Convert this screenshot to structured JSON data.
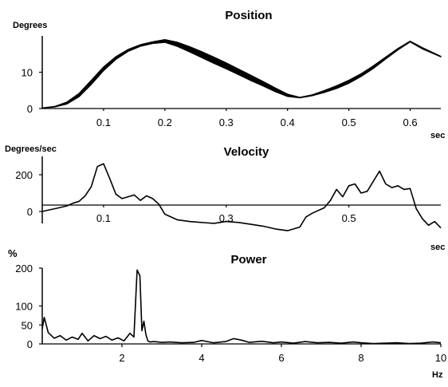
{
  "chart_data": [
    {
      "type": "line",
      "title": "Position",
      "ylabel": "Degrees",
      "xlabel": "sec",
      "xlim": [
        0,
        0.65
      ],
      "ylim": [
        0,
        20
      ],
      "xticks": [
        0.1,
        0.2,
        0.3,
        0.4,
        0.5,
        0.6
      ],
      "xtick_labels": [
        "0.1",
        "0.2",
        "0.3",
        "0.4",
        "0.5",
        "0.6"
      ],
      "yticks": [
        0,
        10
      ],
      "ytick_labels": [
        "0",
        "10"
      ],
      "series": [
        {
          "x": [
            0.0,
            0.02,
            0.04,
            0.06,
            0.08,
            0.1,
            0.12,
            0.14,
            0.16,
            0.18,
            0.2,
            0.22,
            0.24,
            0.26,
            0.28,
            0.3,
            0.32,
            0.34,
            0.36,
            0.38,
            0.4,
            0.42,
            0.44,
            0.46,
            0.48,
            0.5,
            0.52,
            0.54,
            0.56,
            0.58,
            0.6,
            0.62,
            0.65
          ],
          "upper": [
            0.2,
            0.6,
            1.8,
            4.2,
            7.8,
            11.5,
            14.3,
            16.3,
            17.6,
            18.4,
            19.0,
            18.3,
            17.1,
            15.7,
            14.2,
            12.6,
            10.9,
            9.2,
            7.5,
            5.7,
            4.0,
            3.1,
            3.8,
            5.0,
            6.3,
            7.8,
            9.6,
            11.8,
            14.2,
            16.6,
            18.6,
            16.8,
            14.4
          ],
          "lower": [
            0.1,
            0.4,
            1.2,
            3.2,
            6.6,
            10.4,
            13.5,
            15.7,
            17.1,
            17.9,
            18.2,
            17.1,
            15.6,
            14.0,
            12.4,
            10.9,
            9.3,
            7.7,
            6.2,
            4.6,
            3.3,
            2.9,
            3.5,
            4.4,
            5.5,
            6.9,
            8.8,
            11.0,
            13.6,
            16.1,
            18.3,
            16.4,
            14.2
          ]
        }
      ]
    },
    {
      "type": "line",
      "title": "Velocity",
      "ylabel": "Degrees/sec",
      "xlabel": "sec",
      "xlim": [
        0,
        0.65
      ],
      "ylim": [
        -100,
        300
      ],
      "xticks": [
        0.1,
        0.3,
        0.5
      ],
      "xtick_labels": [
        "0.1",
        "0.3",
        "0.5"
      ],
      "yticks": [
        0,
        200
      ],
      "ytick_labels": [
        "0",
        "200"
      ],
      "series": [
        {
          "x": [
            0.0,
            0.02,
            0.04,
            0.05,
            0.06,
            0.07,
            0.08,
            0.09,
            0.1,
            0.11,
            0.12,
            0.13,
            0.14,
            0.15,
            0.16,
            0.17,
            0.18,
            0.19,
            0.2,
            0.22,
            0.24,
            0.26,
            0.28,
            0.3,
            0.32,
            0.34,
            0.36,
            0.38,
            0.4,
            0.42,
            0.43,
            0.44,
            0.46,
            0.47,
            0.48,
            0.49,
            0.5,
            0.51,
            0.52,
            0.53,
            0.54,
            0.55,
            0.56,
            0.57,
            0.58,
            0.59,
            0.6,
            0.61,
            0.62,
            0.63,
            0.64,
            0.65
          ],
          "y": [
            0,
            15,
            30,
            45,
            55,
            85,
            135,
            245,
            260,
            180,
            95,
            70,
            80,
            90,
            60,
            85,
            70,
            40,
            -15,
            -45,
            -55,
            -60,
            -65,
            -55,
            -60,
            -70,
            -80,
            -95,
            -105,
            -85,
            -30,
            -10,
            20,
            60,
            120,
            80,
            140,
            150,
            100,
            110,
            165,
            220,
            150,
            130,
            140,
            120,
            125,
            15,
            -40,
            -75,
            -55,
            -90
          ]
        }
      ]
    },
    {
      "type": "line",
      "title": "Power",
      "ylabel": "%",
      "xlabel": "Hz",
      "xlim": [
        0,
        10
      ],
      "ylim": [
        0,
        200
      ],
      "xticks": [
        2,
        4,
        6,
        8,
        10
      ],
      "xtick_labels": [
        "2",
        "4",
        "6",
        "8",
        "10"
      ],
      "yticks": [
        0,
        50,
        100,
        200
      ],
      "ytick_labels": [
        "0",
        "50",
        "100",
        "200"
      ],
      "series": [
        {
          "x": [
            0.0,
            0.05,
            0.15,
            0.3,
            0.45,
            0.6,
            0.75,
            0.9,
            1.0,
            1.15,
            1.3,
            1.45,
            1.6,
            1.75,
            1.9,
            2.05,
            2.2,
            2.3,
            2.38,
            2.45,
            2.5,
            2.55,
            2.6,
            2.65,
            2.7,
            2.8,
            3.0,
            3.2,
            3.5,
            3.8,
            4.0,
            4.3,
            4.6,
            4.8,
            4.9,
            5.0,
            5.2,
            5.5,
            5.8,
            6.0,
            6.3,
            6.6,
            6.9,
            7.2,
            7.5,
            7.8,
            8.0,
            8.3,
            8.6,
            8.9,
            9.2,
            9.5,
            9.8,
            10.0
          ],
          "y": [
            40,
            70,
            30,
            15,
            22,
            10,
            18,
            12,
            28,
            8,
            22,
            14,
            20,
            10,
            16,
            8,
            28,
            18,
            195,
            180,
            35,
            60,
            25,
            8,
            5,
            6,
            4,
            5,
            3,
            4,
            9,
            3,
            6,
            14,
            12,
            10,
            4,
            7,
            3,
            5,
            2,
            6,
            3,
            4,
            2,
            5,
            3,
            1,
            2,
            3,
            1,
            2,
            5,
            3
          ]
        }
      ]
    }
  ]
}
